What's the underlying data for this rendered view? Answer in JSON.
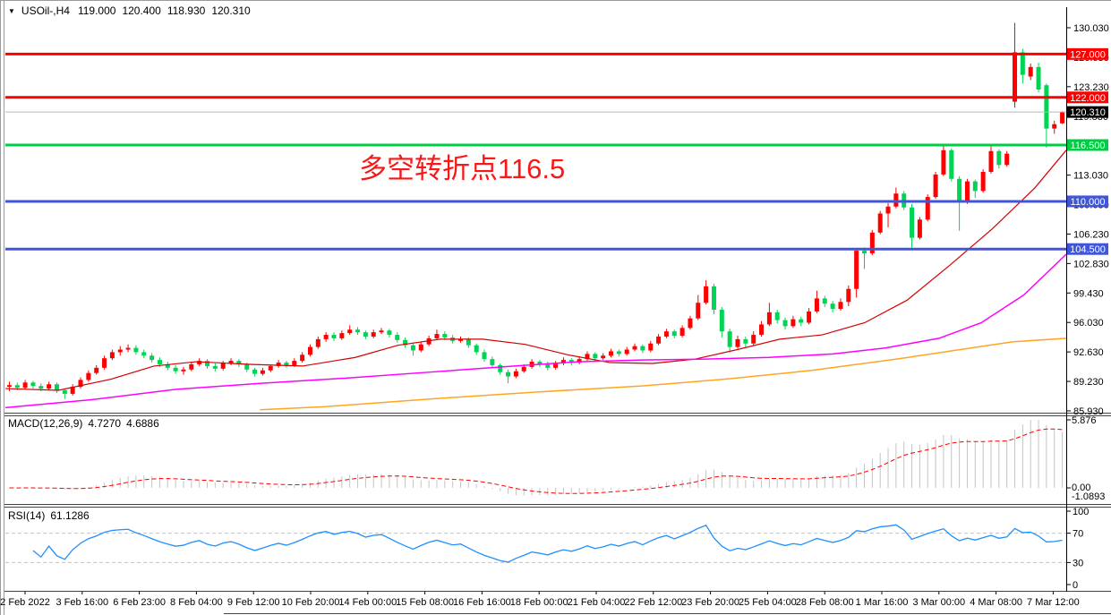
{
  "window": {
    "symbol_label": "USOil-,H4",
    "ohlc": {
      "open": "119.000",
      "high": "120.400",
      "low": "118.930",
      "close": "120.310"
    }
  },
  "colors": {
    "background": "#ffffff",
    "bull_candle": "#ff0000",
    "bear_candle": "#00d455",
    "hline_red": "#ff0000",
    "hline_green": "#00cc44",
    "hline_blue": "#4056d8",
    "current_price_line": "#b8b8b8",
    "current_price_badge": "#000000",
    "ma_fast": "#d40000",
    "ma_medium": "#ff00ff",
    "ma_slow": "#ffa520",
    "macd_histogram": "#c4c4c4",
    "macd_signal": "#ff0000",
    "rsi_line": "#1e90ff",
    "rsi_levels": "#c0c0c0",
    "frame": "#9b9b9b",
    "separator": "#444444",
    "annotation_red": "#f91818"
  },
  "chart_data": [
    {
      "type": "candlestick",
      "panel": "price",
      "title": "USOil-,H4",
      "price_axis": {
        "min": 85.93,
        "max": 130.03,
        "tick_step": 3.4,
        "ticks": [
          "130.030",
          "126.630",
          "123.230",
          "119.830",
          "116.430",
          "113.030",
          "109.630",
          "106.230",
          "102.830",
          "99.430",
          "96.030",
          "92.630",
          "89.230",
          "85.930"
        ]
      },
      "candles": [
        [
          88.6,
          89.2,
          88.1,
          88.8
        ],
        [
          88.8,
          89.1,
          88.2,
          88.5
        ],
        [
          88.5,
          89.4,
          88.3,
          89.1
        ],
        [
          89.1,
          89.3,
          88.4,
          88.7
        ],
        [
          88.7,
          89.0,
          88.1,
          88.4
        ],
        [
          88.4,
          89.2,
          88.2,
          88.9
        ],
        [
          88.9,
          89.1,
          87.9,
          88.2
        ],
        [
          88.2,
          88.4,
          87.2,
          87.8
        ],
        [
          87.8,
          88.9,
          87.6,
          88.6
        ],
        [
          88.6,
          89.7,
          88.4,
          89.4
        ],
        [
          89.4,
          90.5,
          89.2,
          90.2
        ],
        [
          90.2,
          91.1,
          90.0,
          90.8
        ],
        [
          90.8,
          92.2,
          90.6,
          91.9
        ],
        [
          91.9,
          92.9,
          91.7,
          92.6
        ],
        [
          92.6,
          93.3,
          92.2,
          92.9
        ],
        [
          92.9,
          93.5,
          92.6,
          93.1
        ],
        [
          93.1,
          93.4,
          92.3,
          92.6
        ],
        [
          92.6,
          92.9,
          91.9,
          92.2
        ],
        [
          92.2,
          92.5,
          91.4,
          91.7
        ],
        [
          91.7,
          92.0,
          90.9,
          91.2
        ],
        [
          91.2,
          91.5,
          90.5,
          90.8
        ],
        [
          90.8,
          91.1,
          90.1,
          90.4
        ],
        [
          90.4,
          90.9,
          90.0,
          90.6
        ],
        [
          90.6,
          91.5,
          90.4,
          91.2
        ],
        [
          91.2,
          91.9,
          91.0,
          91.6
        ],
        [
          91.6,
          91.8,
          90.7,
          91.0
        ],
        [
          91.0,
          91.3,
          90.4,
          90.7
        ],
        [
          90.7,
          91.6,
          90.5,
          91.3
        ],
        [
          91.3,
          91.9,
          91.1,
          91.6
        ],
        [
          91.6,
          91.8,
          90.9,
          91.2
        ],
        [
          91.2,
          91.4,
          90.3,
          90.6
        ],
        [
          90.6,
          90.8,
          89.8,
          90.1
        ],
        [
          90.1,
          90.8,
          89.9,
          90.5
        ],
        [
          90.5,
          91.2,
          90.3,
          91.0
        ],
        [
          91.0,
          91.7,
          90.8,
          91.4
        ],
        [
          91.4,
          91.6,
          90.8,
          91.1
        ],
        [
          91.1,
          91.9,
          90.9,
          91.6
        ],
        [
          91.6,
          92.6,
          91.4,
          92.3
        ],
        [
          92.3,
          93.5,
          92.1,
          93.2
        ],
        [
          93.2,
          94.4,
          93.0,
          94.1
        ],
        [
          94.1,
          94.9,
          93.8,
          94.6
        ],
        [
          94.6,
          94.9,
          93.9,
          94.2
        ],
        [
          94.2,
          95.1,
          94.0,
          94.8
        ],
        [
          94.8,
          95.7,
          94.6,
          95.2
        ],
        [
          95.2,
          95.5,
          94.6,
          94.9
        ],
        [
          94.9,
          95.1,
          94.1,
          94.4
        ],
        [
          94.4,
          95.2,
          94.2,
          94.9
        ],
        [
          94.9,
          95.4,
          94.7,
          95.1
        ],
        [
          95.1,
          95.3,
          94.3,
          94.6
        ],
        [
          94.6,
          94.9,
          93.7,
          94.0
        ],
        [
          94.0,
          94.3,
          93.1,
          93.4
        ],
        [
          93.4,
          93.7,
          92.2,
          92.8
        ],
        [
          92.8,
          93.8,
          92.6,
          93.5
        ],
        [
          93.5,
          94.5,
          93.3,
          94.2
        ],
        [
          94.2,
          95.2,
          94.0,
          94.7
        ],
        [
          94.7,
          95.0,
          94.0,
          94.3
        ],
        [
          94.3,
          94.6,
          93.6,
          93.9
        ],
        [
          93.9,
          94.4,
          93.7,
          94.1
        ],
        [
          94.1,
          94.3,
          93.1,
          93.4
        ],
        [
          93.4,
          93.6,
          92.3,
          92.6
        ],
        [
          92.6,
          92.9,
          91.5,
          91.8
        ],
        [
          91.8,
          92.1,
          90.8,
          91.1
        ],
        [
          91.1,
          91.3,
          90.0,
          90.3
        ],
        [
          90.3,
          90.6,
          89.0,
          89.8
        ],
        [
          89.8,
          90.7,
          89.6,
          90.4
        ],
        [
          90.4,
          91.2,
          90.2,
          90.9
        ],
        [
          90.9,
          91.8,
          90.7,
          91.5
        ],
        [
          91.5,
          91.7,
          90.9,
          91.2
        ],
        [
          91.2,
          91.5,
          90.5,
          90.8
        ],
        [
          90.8,
          91.6,
          90.6,
          91.3
        ],
        [
          91.3,
          92.0,
          91.1,
          91.7
        ],
        [
          91.7,
          91.9,
          91.1,
          91.4
        ],
        [
          91.4,
          92.1,
          91.2,
          91.8
        ],
        [
          91.8,
          92.7,
          91.6,
          92.4
        ],
        [
          92.4,
          92.6,
          91.6,
          91.9
        ],
        [
          91.9,
          92.5,
          91.7,
          92.2
        ],
        [
          92.2,
          93.0,
          92.0,
          92.7
        ],
        [
          92.7,
          92.9,
          92.1,
          92.4
        ],
        [
          92.4,
          93.2,
          92.2,
          92.9
        ],
        [
          92.9,
          93.6,
          92.7,
          93.3
        ],
        [
          93.3,
          93.5,
          92.5,
          92.8
        ],
        [
          92.8,
          93.9,
          92.6,
          93.6
        ],
        [
          93.6,
          94.7,
          93.4,
          94.4
        ],
        [
          94.4,
          95.3,
          94.2,
          95.0
        ],
        [
          95.0,
          95.2,
          94.2,
          94.5
        ],
        [
          94.5,
          95.7,
          94.3,
          95.4
        ],
        [
          95.4,
          96.8,
          95.2,
          96.5
        ],
        [
          96.5,
          99.2,
          96.3,
          98.3
        ],
        [
          98.3,
          100.9,
          98.1,
          100.2
        ],
        [
          100.2,
          100.5,
          97.0,
          97.5
        ],
        [
          97.5,
          97.8,
          94.3,
          95.0
        ],
        [
          95.0,
          95.3,
          92.6,
          93.2
        ],
        [
          93.2,
          94.5,
          93.0,
          94.1
        ],
        [
          94.1,
          94.4,
          93.2,
          93.6
        ],
        [
          93.6,
          95.0,
          93.4,
          94.6
        ],
        [
          94.6,
          96.2,
          94.4,
          95.8
        ],
        [
          95.8,
          98.3,
          95.6,
          97.2
        ],
        [
          97.2,
          97.5,
          95.9,
          96.3
        ],
        [
          96.3,
          96.6,
          95.2,
          95.6
        ],
        [
          95.6,
          96.8,
          95.4,
          96.4
        ],
        [
          96.4,
          96.7,
          95.6,
          96.0
        ],
        [
          96.0,
          97.7,
          95.8,
          97.3
        ],
        [
          97.3,
          99.7,
          97.1,
          98.8
        ],
        [
          98.8,
          99.1,
          97.8,
          98.2
        ],
        [
          98.2,
          98.5,
          97.2,
          97.6
        ],
        [
          97.6,
          98.8,
          97.4,
          98.4
        ],
        [
          98.4,
          100.3,
          97.9,
          99.9
        ],
        [
          99.9,
          104.6,
          98.9,
          104.3
        ],
        [
          104.3,
          104.7,
          102.2,
          104.0
        ],
        [
          104.0,
          106.7,
          103.8,
          106.4
        ],
        [
          106.4,
          108.9,
          106.2,
          108.6
        ],
        [
          108.6,
          109.8,
          107.0,
          109.4
        ],
        [
          109.4,
          111.6,
          109.2,
          110.9
        ],
        [
          110.9,
          111.2,
          109.0,
          109.3
        ],
        [
          109.3,
          109.7,
          104.4,
          105.8
        ],
        [
          105.8,
          108.2,
          105.6,
          107.9
        ],
        [
          107.9,
          110.8,
          107.7,
          110.5
        ],
        [
          110.5,
          113.4,
          110.3,
          113.1
        ],
        [
          113.1,
          116.4,
          112.9,
          115.9
        ],
        [
          115.9,
          116.1,
          112.3,
          112.6
        ],
        [
          112.6,
          112.9,
          106.6,
          109.9
        ],
        [
          109.9,
          112.6,
          109.7,
          112.3
        ],
        [
          112.3,
          112.5,
          110.4,
          111.2
        ],
        [
          111.2,
          113.7,
          111.0,
          113.4
        ],
        [
          113.4,
          116.4,
          113.2,
          115.8
        ],
        [
          115.8,
          116.0,
          113.8,
          114.2
        ],
        [
          114.2,
          115.8,
          114.0,
          115.5
        ],
        [
          121.5,
          130.6,
          120.8,
          127.2
        ],
        [
          127.2,
          127.6,
          123.6,
          124.6
        ],
        [
          124.4,
          125.9,
          124.0,
          125.5
        ],
        [
          125.5,
          126.0,
          122.6,
          122.9
        ],
        [
          123.4,
          123.6,
          116.2,
          118.4
        ],
        [
          118.4,
          119.3,
          117.8,
          118.9
        ],
        [
          119.0,
          120.4,
          118.93,
          120.31
        ]
      ],
      "moving_averages": [
        {
          "name": "fast",
          "color": "#d40000",
          "width": 1.2,
          "points": [
            [
              0,
              88.4
            ],
            [
              0.05,
              88.2
            ],
            [
              0.1,
              89.5
            ],
            [
              0.14,
              91.0
            ],
            [
              0.18,
              91.5
            ],
            [
              0.23,
              91.2
            ],
            [
              0.28,
              91.0
            ],
            [
              0.33,
              92.0
            ],
            [
              0.37,
              93.4
            ],
            [
              0.41,
              94.1
            ],
            [
              0.45,
              94.1
            ],
            [
              0.49,
              93.5
            ],
            [
              0.53,
              92.3
            ],
            [
              0.57,
              91.4
            ],
            [
              0.61,
              91.3
            ],
            [
              0.65,
              91.8
            ],
            [
              0.69,
              92.9
            ],
            [
              0.73,
              94.1
            ],
            [
              0.77,
              94.6
            ],
            [
              0.81,
              96.0
            ],
            [
              0.85,
              98.6
            ],
            [
              0.89,
              102.6
            ],
            [
              0.93,
              106.8
            ],
            [
              0.97,
              111.5
            ],
            [
              1,
              115.9
            ]
          ]
        },
        {
          "name": "medium",
          "color": "#ff00ff",
          "width": 1.5,
          "points": [
            [
              0,
              86.2
            ],
            [
              0.08,
              87.1
            ],
            [
              0.16,
              88.3
            ],
            [
              0.24,
              89.0
            ],
            [
              0.32,
              89.6
            ],
            [
              0.4,
              90.3
            ],
            [
              0.48,
              91.0
            ],
            [
              0.54,
              91.5
            ],
            [
              0.6,
              91.7
            ],
            [
              0.66,
              91.8
            ],
            [
              0.72,
              92.0
            ],
            [
              0.78,
              92.4
            ],
            [
              0.83,
              93.1
            ],
            [
              0.88,
              94.2
            ],
            [
              0.92,
              96.0
            ],
            [
              0.96,
              99.2
            ],
            [
              1,
              103.9
            ]
          ]
        },
        {
          "name": "slow",
          "color": "#ffa520",
          "width": 1.5,
          "points": [
            [
              0.24,
              85.95
            ],
            [
              0.3,
              86.3
            ],
            [
              0.4,
              87.2
            ],
            [
              0.5,
              88.0
            ],
            [
              0.6,
              88.7
            ],
            [
              0.68,
              89.5
            ],
            [
              0.76,
              90.5
            ],
            [
              0.84,
              91.8
            ],
            [
              0.9,
              92.9
            ],
            [
              0.95,
              93.8
            ],
            [
              1,
              94.2
            ]
          ]
        }
      ],
      "hlines": [
        {
          "price": 127.0,
          "label": "127.000",
          "color": "#ff0000",
          "width": 3
        },
        {
          "price": 122.0,
          "label": "122.000",
          "color": "#ff0000",
          "width": 3
        },
        {
          "price": 116.5,
          "label": "116.500",
          "color": "#00cc44",
          "width": 3
        },
        {
          "price": 110.0,
          "label": "110.000",
          "color": "#4056d8",
          "width": 3
        },
        {
          "price": 104.5,
          "label": "104.500",
          "color": "#4056d8",
          "width": 3
        }
      ],
      "current_price": {
        "value": 120.31,
        "label": "120.310"
      },
      "annotation": {
        "text": "多空转折点116.5",
        "color": "#f91818"
      }
    },
    {
      "type": "bar",
      "panel": "macd",
      "label": "MACD(12,26,9)",
      "main_value": "4.7270",
      "signal_value": "4.6886",
      "derived_from": "price panel closes (EMA12-EMA26, signal EMA9)",
      "axis": {
        "max": 5.876,
        "max_label": "5.876",
        "zero_label": "0.00",
        "min": -1.0893,
        "min_label": "-1.0893"
      }
    },
    {
      "type": "line",
      "panel": "rsi",
      "label": "RSI(14)",
      "value_text": "61.1286",
      "derived_from": "price panel closes (Wilder RSI 14)",
      "axis": {
        "ticks": [
          "100",
          "70",
          "30",
          "0"
        ],
        "min": 0,
        "max": 100
      },
      "levels": [
        70,
        30
      ]
    }
  ],
  "time_axis": {
    "labels": [
      "2 Feb 2022",
      "3 Feb 16:00",
      "6 Feb 23:00",
      "8 Feb 04:00",
      "9 Feb 12:00",
      "10 Feb 20:00",
      "14 Feb 00:00",
      "15 Feb 08:00",
      "16 Feb 16:00",
      "18 Feb 00:00",
      "21 Feb 04:00",
      "22 Feb 12:00",
      "23 Feb 20:00",
      "25 Feb 04:00",
      "28 Feb 08:00",
      "1 Mar 16:00",
      "3 Mar 00:00",
      "4 Mar 08:00",
      "7 Mar 12:00"
    ]
  }
}
